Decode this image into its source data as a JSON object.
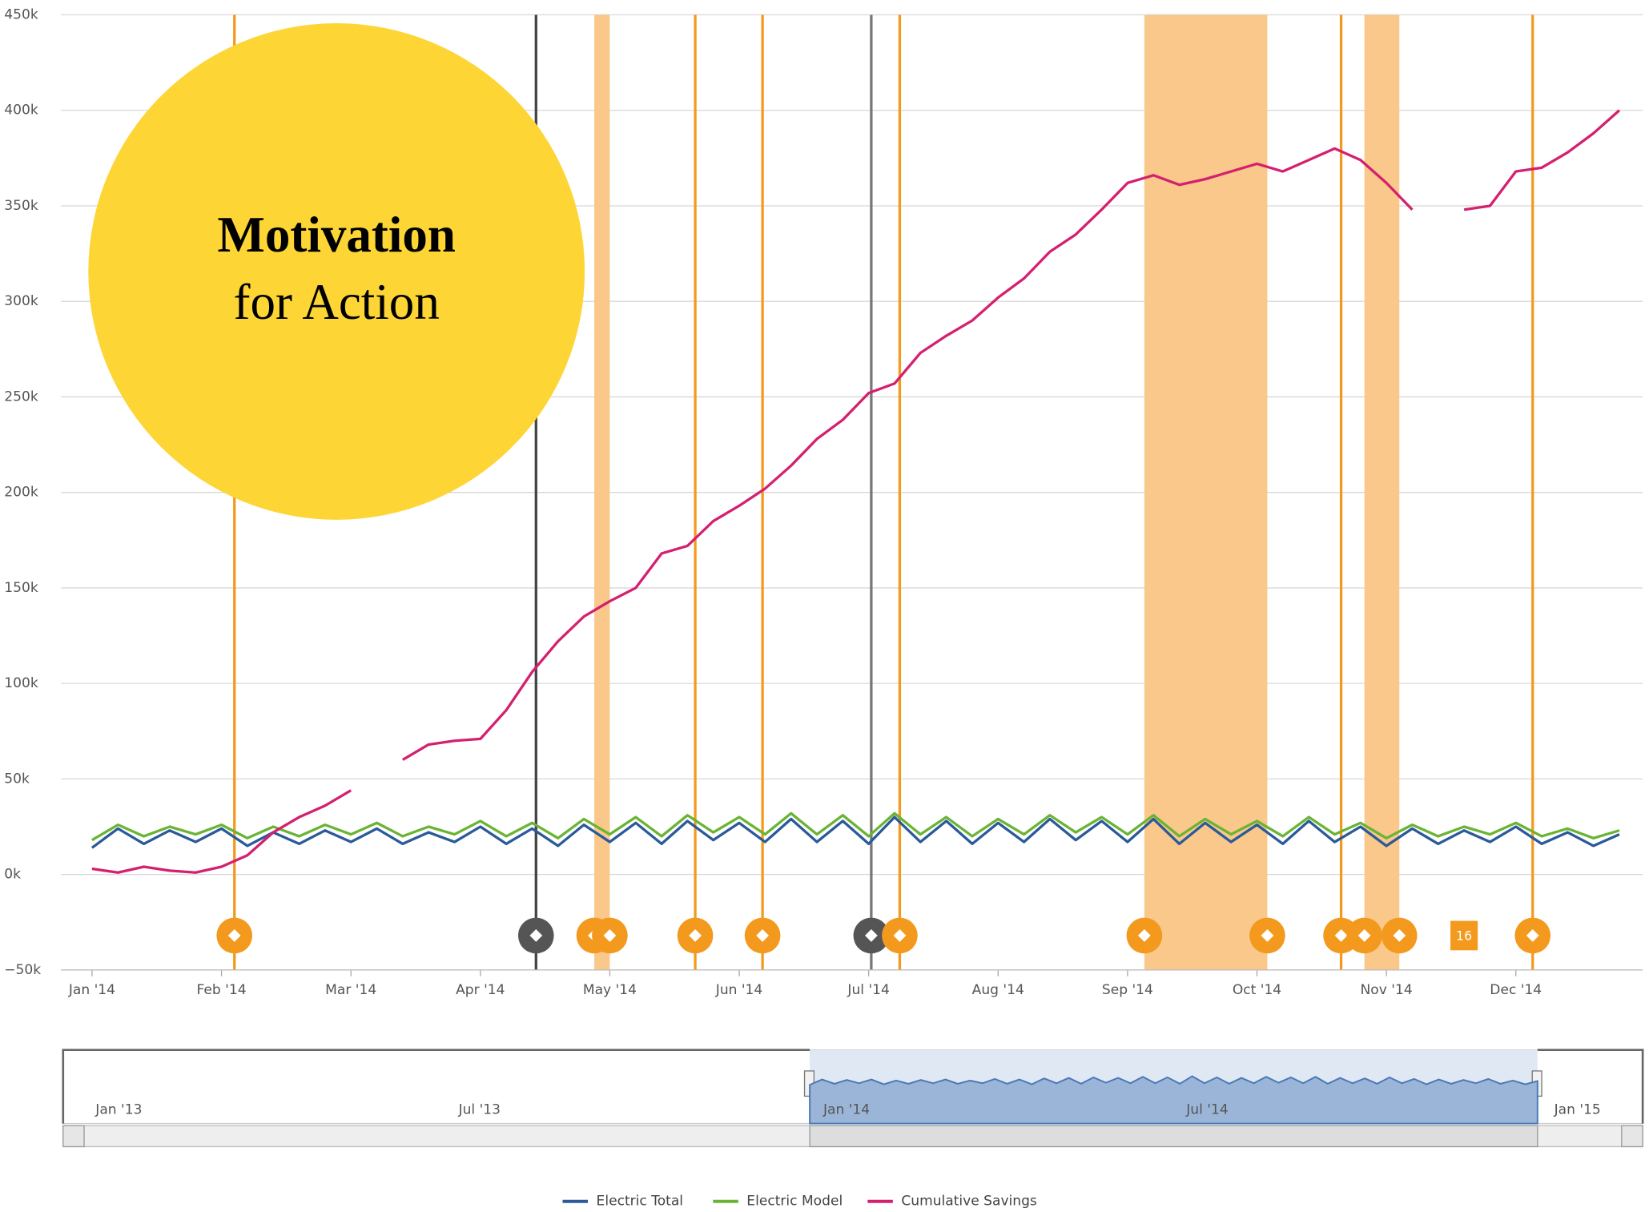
{
  "chart_data": {
    "type": "line",
    "x": [
      0,
      0.2,
      0.4,
      0.6,
      0.8,
      1,
      1.2,
      1.4,
      1.6,
      1.8,
      2,
      2.2,
      2.4,
      2.6,
      2.8,
      3,
      3.2,
      3.4,
      3.6,
      3.8,
      4,
      4.2,
      4.4,
      4.6,
      4.8,
      5,
      5.2,
      5.4,
      5.6,
      5.8,
      6,
      6.2,
      6.4,
      6.6,
      6.8,
      7,
      7.2,
      7.4,
      7.6,
      7.8,
      8,
      8.2,
      8.4,
      8.6,
      8.8,
      9,
      9.2,
      9.4,
      9.6,
      9.8,
      10,
      10.2,
      10.4,
      10.6,
      10.8,
      11,
      11.2,
      11.4,
      11.6,
      11.8
    ],
    "series": [
      {
        "name": "Electric Total",
        "color": "#2a5a9a",
        "values": [
          14000,
          24000,
          16000,
          23000,
          17000,
          24000,
          15000,
          22000,
          16000,
          23000,
          17000,
          24000,
          16000,
          22000,
          17000,
          25000,
          16000,
          24000,
          15000,
          26000,
          17000,
          27000,
          16000,
          28000,
          18000,
          27000,
          17000,
          29000,
          17000,
          28000,
          16000,
          30000,
          17000,
          28000,
          16000,
          27000,
          17000,
          29000,
          18000,
          28000,
          17000,
          29000,
          16000,
          27000,
          17000,
          26000,
          16000,
          28000,
          17000,
          25000,
          15000,
          24000,
          16000,
          23000,
          17000,
          25000,
          16000,
          22000,
          15000,
          21000
        ]
      },
      {
        "name": "Electric Model",
        "color": "#6ab434",
        "values": [
          18000,
          26000,
          20000,
          25000,
          21000,
          26000,
          19000,
          25000,
          20000,
          26000,
          21000,
          27000,
          20000,
          25000,
          21000,
          28000,
          20000,
          27000,
          19000,
          29000,
          21000,
          30000,
          20000,
          31000,
          22000,
          30000,
          21000,
          32000,
          21000,
          31000,
          20000,
          32000,
          21000,
          30000,
          20000,
          29000,
          21000,
          31000,
          22000,
          30000,
          21000,
          31000,
          20000,
          29000,
          21000,
          28000,
          20000,
          30000,
          21000,
          27000,
          19000,
          26000,
          20000,
          25000,
          21000,
          27000,
          20000,
          24000,
          19000,
          23000
        ]
      },
      {
        "name": "Cumulative Savings",
        "color": "#d4206f",
        "values": [
          3000,
          1000,
          4000,
          2000,
          1000,
          4000,
          10000,
          22000,
          30000,
          36000,
          44000,
          null,
          60000,
          68000,
          70000,
          71000,
          86000,
          106000,
          122000,
          135000,
          143000,
          150000,
          168000,
          172000,
          185000,
          193000,
          202000,
          214000,
          228000,
          238000,
          252000,
          257000,
          273000,
          282000,
          290000,
          302000,
          312000,
          326000,
          335000,
          348000,
          362000,
          366000,
          361000,
          364000,
          368000,
          372000,
          368000,
          374000,
          380000,
          374000,
          362000,
          348000,
          null,
          348000,
          350000,
          368000,
          370000,
          378000,
          388000,
          400000
        ]
      }
    ],
    "xlim": [
      -0.24,
      11.98
    ],
    "xticks": [
      {
        "value": 0,
        "label": "Jan '14"
      },
      {
        "value": 1,
        "label": "Feb '14"
      },
      {
        "value": 2,
        "label": "Mar '14"
      },
      {
        "value": 3,
        "label": "Apr '14"
      },
      {
        "value": 4,
        "label": "May '14"
      },
      {
        "value": 5,
        "label": "Jun '14"
      },
      {
        "value": 6,
        "label": "Jul '14"
      },
      {
        "value": 7,
        "label": "Aug '14"
      },
      {
        "value": 8,
        "label": "Sep '14"
      },
      {
        "value": 9,
        "label": "Oct '14"
      },
      {
        "value": 10,
        "label": "Nov '14"
      },
      {
        "value": 11,
        "label": "Dec '14"
      }
    ],
    "ylim": [
      -50000,
      450000
    ],
    "yticks": [
      {
        "value": -50000,
        "label": "−50k"
      },
      {
        "value": 0,
        "label": "0k"
      },
      {
        "value": 50000,
        "label": "50k"
      },
      {
        "value": 100000,
        "label": "100k"
      },
      {
        "value": 150000,
        "label": "150k"
      },
      {
        "value": 200000,
        "label": "200k"
      },
      {
        "value": 250000,
        "label": "250k"
      },
      {
        "value": 300000,
        "label": "300k"
      },
      {
        "value": 350000,
        "label": "350k"
      },
      {
        "value": 400000,
        "label": "400k"
      },
      {
        "value": 450000,
        "label": "450k"
      }
    ],
    "grid": true,
    "event_color": "#f39a1e",
    "band_color": "#f9c88a",
    "plot_bands": [
      [
        3.88,
        4.0
      ],
      [
        8.13,
        9.08
      ],
      [
        9.83,
        10.1
      ]
    ],
    "plot_lines": [
      {
        "x": 1.1
      },
      {
        "x": 3.43,
        "color": "#444"
      },
      {
        "x": 4.66
      },
      {
        "x": 5.18
      },
      {
        "x": 6.02,
        "color": "#777"
      },
      {
        "x": 6.24
      },
      {
        "x": 9.65
      },
      {
        "x": 11.13
      }
    ],
    "flags": [
      {
        "x": 1.1
      },
      {
        "x": 3.43,
        "color": "#555"
      },
      {
        "x": 3.88
      },
      {
        "x": 4.0
      },
      {
        "x": 4.66
      },
      {
        "x": 5.18
      },
      {
        "x": 6.02,
        "color": "#555"
      },
      {
        "x": 6.24
      },
      {
        "x": 8.13
      },
      {
        "x": 9.08
      },
      {
        "x": 9.65
      },
      {
        "x": 9.83
      },
      {
        "x": 10.1
      },
      {
        "x": 10.6,
        "label": "16"
      },
      {
        "x": 11.13
      }
    ],
    "navigator_labels": [
      "Jan '13",
      "Jul '13",
      "Jan '14",
      "Jul '14",
      "Jan '15"
    ],
    "overlay": {
      "title": "Motivation",
      "subtitle": "for Action",
      "color": "#fdd535"
    }
  }
}
